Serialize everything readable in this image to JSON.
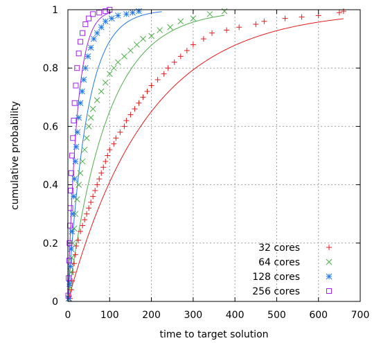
{
  "chart_data": {
    "type": "scatter",
    "xlabel": "time to target solution",
    "ylabel": "cumulative probability",
    "xlim": [
      0,
      700
    ],
    "ylim": [
      0,
      1
    ],
    "x_ticks": [
      0,
      100,
      200,
      300,
      400,
      500,
      600,
      700
    ],
    "y_ticks": [
      0,
      0.2,
      0.4,
      0.6,
      0.8,
      1
    ],
    "x_tick_labels": [
      "0",
      "100",
      "200",
      "300",
      "400",
      "500",
      "600",
      "700"
    ],
    "y_tick_labels": [
      "0",
      "0.2",
      "0.4",
      "0.6",
      "0.8",
      "1"
    ],
    "grid": true,
    "legend_position": "bottom-right",
    "series": [
      {
        "name": "32 cores",
        "marker": "plus",
        "color": "#e41a1c",
        "fit_scale": 190,
        "fit_shift": 0,
        "x_max": 660,
        "points": [
          [
            5,
            0.01
          ],
          [
            8,
            0.04
          ],
          [
            10,
            0.07
          ],
          [
            12,
            0.1
          ],
          [
            15,
            0.13
          ],
          [
            18,
            0.16
          ],
          [
            20,
            0.19
          ],
          [
            25,
            0.21
          ],
          [
            30,
            0.24
          ],
          [
            35,
            0.26
          ],
          [
            40,
            0.28
          ],
          [
            45,
            0.3
          ],
          [
            50,
            0.32
          ],
          [
            55,
            0.34
          ],
          [
            60,
            0.36
          ],
          [
            65,
            0.38
          ],
          [
            70,
            0.4
          ],
          [
            75,
            0.42
          ],
          [
            80,
            0.44
          ],
          [
            85,
            0.46
          ],
          [
            90,
            0.48
          ],
          [
            95,
            0.5
          ],
          [
            100,
            0.52
          ],
          [
            110,
            0.54
          ],
          [
            115,
            0.56
          ],
          [
            125,
            0.58
          ],
          [
            135,
            0.6
          ],
          [
            140,
            0.62
          ],
          [
            150,
            0.64
          ],
          [
            160,
            0.66
          ],
          [
            170,
            0.68
          ],
          [
            180,
            0.7
          ],
          [
            190,
            0.72
          ],
          [
            200,
            0.74
          ],
          [
            215,
            0.76
          ],
          [
            230,
            0.78
          ],
          [
            240,
            0.8
          ],
          [
            255,
            0.82
          ],
          [
            270,
            0.84
          ],
          [
            285,
            0.86
          ],
          [
            300,
            0.88
          ],
          [
            325,
            0.9
          ],
          [
            345,
            0.92
          ],
          [
            380,
            0.93
          ],
          [
            410,
            0.94
          ],
          [
            450,
            0.95
          ],
          [
            470,
            0.96
          ],
          [
            520,
            0.97
          ],
          [
            560,
            0.975
          ],
          [
            600,
            0.98
          ],
          [
            650,
            0.99
          ],
          [
            660,
            0.995
          ]
        ]
      },
      {
        "name": "64 cores",
        "marker": "cross",
        "color": "#4daf4a",
        "fit_scale": 95,
        "fit_shift": 0,
        "x_max": 375,
        "points": [
          [
            3,
            0.01
          ],
          [
            5,
            0.05
          ],
          [
            7,
            0.1
          ],
          [
            9,
            0.15
          ],
          [
            12,
            0.2
          ],
          [
            15,
            0.25
          ],
          [
            18,
            0.3
          ],
          [
            22,
            0.35
          ],
          [
            26,
            0.4
          ],
          [
            30,
            0.44
          ],
          [
            35,
            0.48
          ],
          [
            40,
            0.52
          ],
          [
            45,
            0.56
          ],
          [
            50,
            0.6
          ],
          [
            55,
            0.63
          ],
          [
            60,
            0.66
          ],
          [
            70,
            0.69
          ],
          [
            80,
            0.72
          ],
          [
            90,
            0.75
          ],
          [
            100,
            0.78
          ],
          [
            110,
            0.8
          ],
          [
            120,
            0.82
          ],
          [
            135,
            0.84
          ],
          [
            150,
            0.86
          ],
          [
            165,
            0.88
          ],
          [
            180,
            0.9
          ],
          [
            200,
            0.91
          ],
          [
            220,
            0.93
          ],
          [
            245,
            0.94
          ],
          [
            270,
            0.96
          ],
          [
            300,
            0.97
          ],
          [
            340,
            0.985
          ],
          [
            375,
            0.995
          ]
        ]
      },
      {
        "name": "128 cores",
        "marker": "star",
        "color": "#1f78e4",
        "fit_scale": 45,
        "fit_shift": 0,
        "x_max": 225,
        "points": [
          [
            2,
            0.01
          ],
          [
            4,
            0.06
          ],
          [
            6,
            0.12
          ],
          [
            8,
            0.18
          ],
          [
            10,
            0.24
          ],
          [
            12,
            0.3
          ],
          [
            14,
            0.36
          ],
          [
            16,
            0.42
          ],
          [
            18,
            0.48
          ],
          [
            20,
            0.53
          ],
          [
            23,
            0.58
          ],
          [
            26,
            0.63
          ],
          [
            30,
            0.68
          ],
          [
            34,
            0.72
          ],
          [
            38,
            0.76
          ],
          [
            42,
            0.8
          ],
          [
            48,
            0.84
          ],
          [
            55,
            0.87
          ],
          [
            62,
            0.9
          ],
          [
            70,
            0.92
          ],
          [
            80,
            0.94
          ],
          [
            90,
            0.96
          ],
          [
            105,
            0.97
          ],
          [
            120,
            0.98
          ],
          [
            140,
            0.985
          ],
          [
            155,
            0.99
          ],
          [
            170,
            0.995
          ]
        ]
      },
      {
        "name": "256 cores",
        "marker": "square",
        "color": "#a020f0",
        "fit_scale": 22,
        "fit_shift": 0,
        "x_max": 105,
        "points": [
          [
            1,
            0.02
          ],
          [
            2,
            0.08
          ],
          [
            3,
            0.14
          ],
          [
            4,
            0.2
          ],
          [
            5,
            0.26
          ],
          [
            6,
            0.32
          ],
          [
            7,
            0.38
          ],
          [
            8,
            0.44
          ],
          [
            10,
            0.5
          ],
          [
            12,
            0.56
          ],
          [
            14,
            0.62
          ],
          [
            16,
            0.68
          ],
          [
            19,
            0.74
          ],
          [
            22,
            0.8
          ],
          [
            26,
            0.85
          ],
          [
            30,
            0.89
          ],
          [
            35,
            0.92
          ],
          [
            42,
            0.95
          ],
          [
            50,
            0.97
          ],
          [
            60,
            0.985
          ],
          [
            75,
            0.99
          ],
          [
            90,
            0.995
          ],
          [
            100,
            1.0
          ]
        ]
      }
    ]
  }
}
